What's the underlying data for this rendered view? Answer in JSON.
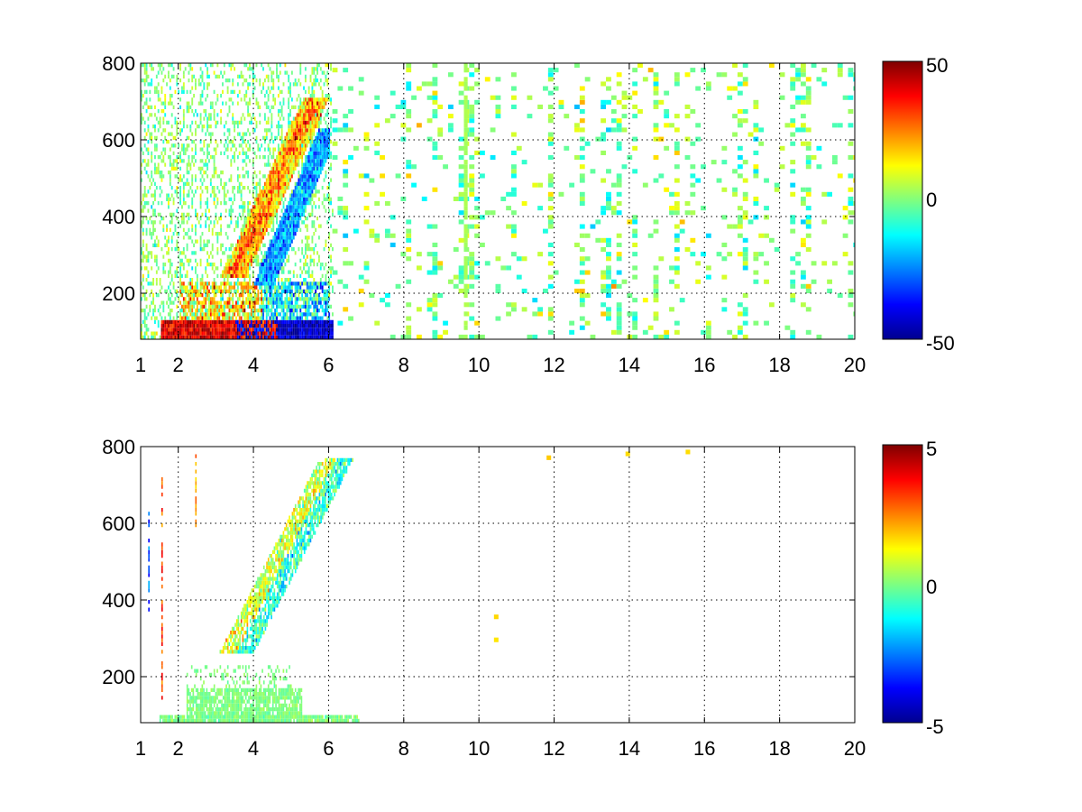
{
  "chart_data": [
    {
      "type": "heatmap",
      "title": "",
      "xlabel": "",
      "ylabel": "",
      "colormap": "jet",
      "xlim": [
        1,
        20
      ],
      "ylim": [
        80,
        800
      ],
      "x_ticks": [
        1,
        2,
        4,
        6,
        8,
        10,
        12,
        14,
        16,
        18,
        20
      ],
      "x_tick_labels": [
        "1",
        "2",
        "4",
        "6",
        "8",
        "10",
        "12",
        "14",
        "16",
        "18",
        "20"
      ],
      "y_ticks": [
        200,
        400,
        600,
        800
      ],
      "y_tick_labels": [
        "200",
        "400",
        "600",
        "800"
      ],
      "grid": true,
      "colorbar": {
        "min": -50,
        "max": 50,
        "tick_labels": [
          "50",
          "0",
          "-50"
        ],
        "tick_values": [
          50,
          0,
          -50
        ]
      },
      "features": [
        {
          "description": "strong positive (red) band along low y",
          "x_range": [
            1.5,
            6
          ],
          "y_range": [
            80,
            130
          ],
          "value": 45
        },
        {
          "description": "negative (blue) band along low y",
          "x_range": [
            3.5,
            6
          ],
          "y_range": [
            80,
            110
          ],
          "value": -45
        },
        {
          "description": "positive diagonal ridge",
          "from": [
            3.5,
            250
          ],
          "to": [
            5.4,
            650
          ],
          "value": 30
        },
        {
          "description": "negative ridge beside positive ridge",
          "from": [
            4.2,
            230
          ],
          "to": [
            5.9,
            600
          ],
          "value": -25
        },
        {
          "description": "scattered near-zero noise",
          "x_range": [
            1,
            20
          ],
          "y_range": [
            80,
            800
          ],
          "value": 0
        }
      ]
    },
    {
      "type": "heatmap",
      "title": "",
      "xlabel": "",
      "ylabel": "",
      "colormap": "jet",
      "xlim": [
        1,
        20
      ],
      "ylim": [
        80,
        800
      ],
      "x_ticks": [
        1,
        2,
        4,
        6,
        8,
        10,
        12,
        14,
        16,
        18,
        20
      ],
      "x_tick_labels": [
        "1",
        "2",
        "4",
        "6",
        "8",
        "10",
        "12",
        "14",
        "16",
        "18",
        "20"
      ],
      "y_ticks": [
        200,
        400,
        600,
        800
      ],
      "y_tick_labels": [
        "200",
        "400",
        "600",
        "800"
      ],
      "grid": true,
      "colorbar": {
        "min": -5,
        "max": 5,
        "tick_labels": [
          "5",
          "0",
          "-5"
        ],
        "tick_values": [
          5,
          0,
          -5
        ]
      },
      "features": [
        {
          "description": "low-value green band at low y",
          "x_range": [
            1.5,
            6.8
          ],
          "y_range": [
            80,
            170
          ],
          "value": 0
        },
        {
          "description": "diagonal ridge near zero",
          "from": [
            3.5,
            270
          ],
          "to": [
            6,
            650
          ],
          "value": 0.5
        },
        {
          "description": "few isolated points",
          "points": [
            [
              10.4,
              350
            ],
            [
              10.4,
              290
            ],
            [
              11.8,
              765
            ],
            [
              13.9,
              775
            ],
            [
              15.5,
              780
            ]
          ],
          "value": 1
        }
      ]
    }
  ]
}
